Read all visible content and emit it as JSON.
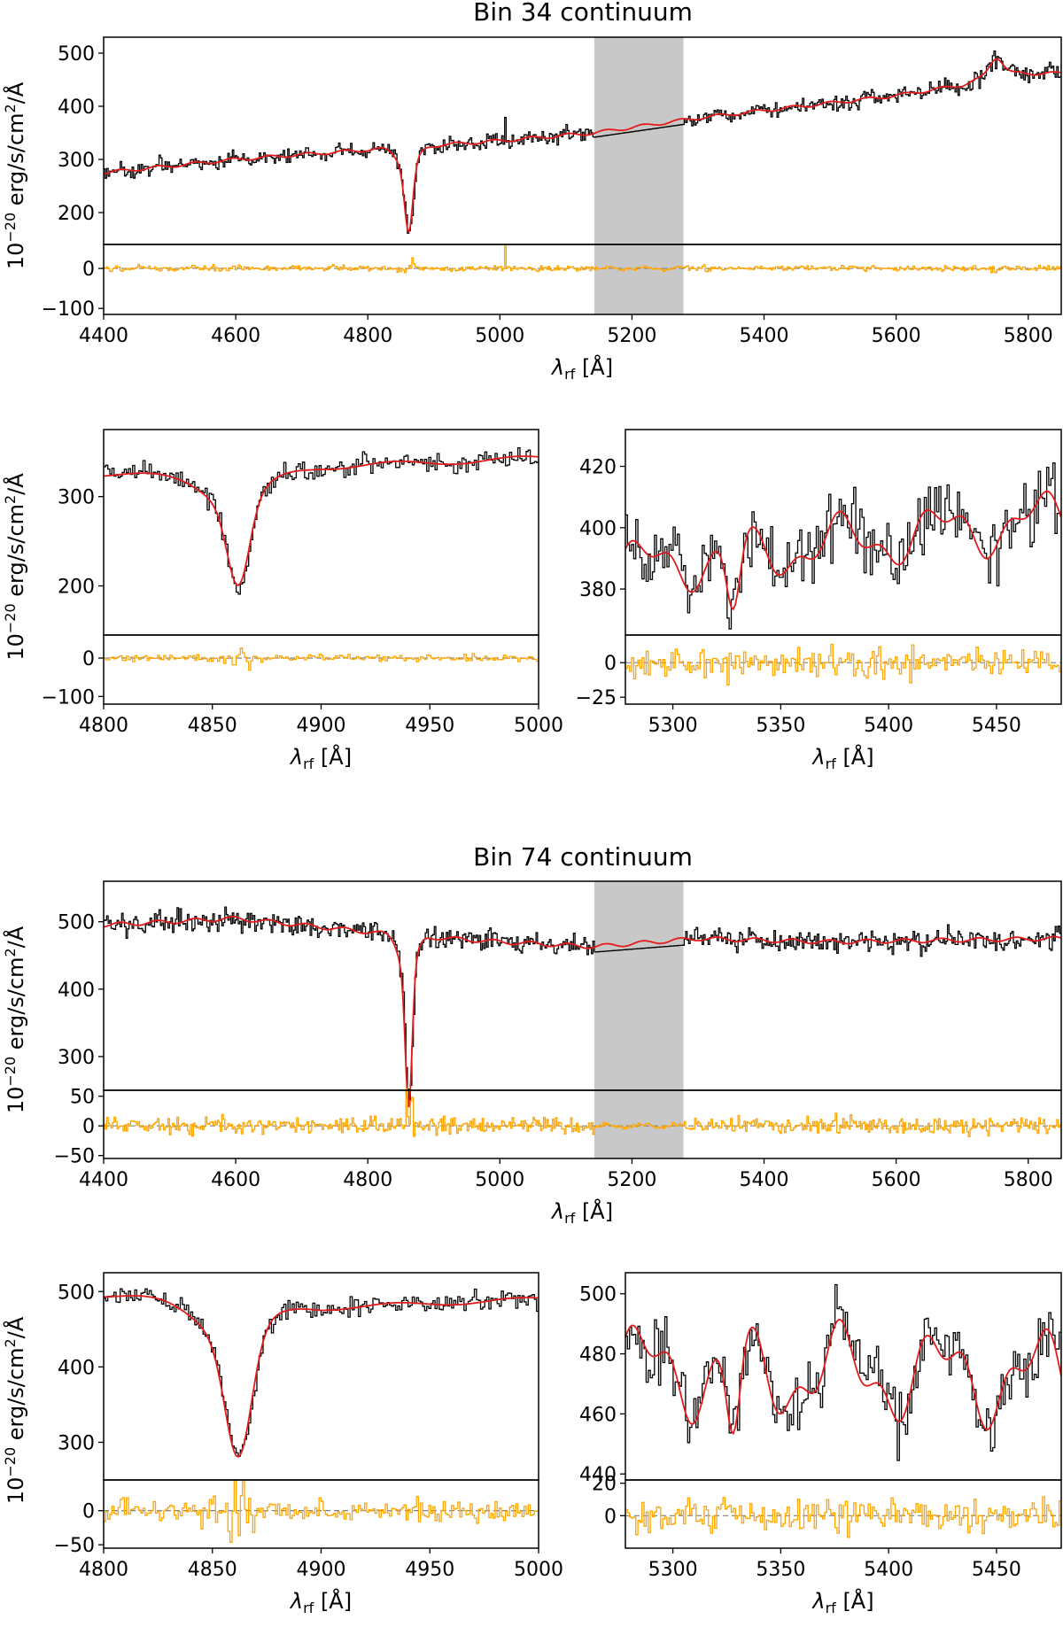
{
  "colors": {
    "data": "#000000",
    "model": "#e41a1c",
    "residual": "#ffa500",
    "zero_line": "#808080",
    "mask": "#c8c8c8"
  },
  "ylabel_base": "10",
  "ylabel_exp": "−20",
  "ylabel_unit": " erg/s/cm",
  "ylabel_sq": "2",
  "ylabel_tail": "/Å",
  "xlabel_sym": "λ",
  "xlabel_sub": "rf",
  "xlabel_unit": " [Å]",
  "chart_data": [
    {
      "id": "bin34",
      "title": "Bin 34 continuum",
      "type": "line",
      "masked_region": [
        5143,
        5278
      ],
      "panels": [
        {
          "name": "full",
          "xlim": [
            4400,
            5850
          ],
          "xticks": [
            4400,
            4600,
            4800,
            5000,
            5200,
            5400,
            5600,
            5800
          ],
          "ylim": [
            140,
            530
          ],
          "yticks": [
            200,
            300,
            400,
            500
          ],
          "res_ylim": [
            -115,
            60
          ],
          "res_yticks": [
            -100,
            0
          ],
          "continuum": [
            [
              4400,
              275
            ],
            [
              4600,
              300
            ],
            [
              4800,
              318
            ],
            [
              5000,
              335
            ],
            [
              5143,
              350
            ],
            [
              5300,
              378
            ],
            [
              5400,
              392
            ],
            [
              5600,
              420
            ],
            [
              5700,
              440
            ],
            [
              5750,
              462
            ],
            [
              5850,
              462
            ]
          ],
          "absorption": [
            {
              "center": 4862,
              "depth": 120,
              "width": 6
            },
            {
              "center": 4860,
              "depth": 40,
              "width": 14
            },
            {
              "center": 5752,
              "depth": -30,
              "width": 10
            }
          ],
          "spikes": [
            {
              "x": 5007,
              "height": 60
            }
          ],
          "noise": 12,
          "res_noise": 6
        },
        {
          "name": "zoom-hbeta",
          "xlim": [
            4800,
            5000
          ],
          "xticks": [
            4800,
            4850,
            4900,
            4950,
            5000
          ],
          "ylim": [
            145,
            375
          ],
          "yticks": [
            200,
            300
          ],
          "res_ylim": [
            -120,
            60
          ],
          "res_yticks": [
            -100,
            0
          ],
          "continuum": [
            [
              4800,
              325
            ],
            [
              4860,
              320
            ],
            [
              4900,
              333
            ],
            [
              5000,
              343
            ]
          ],
          "absorption": [
            {
              "center": 4862,
              "depth": 90,
              "width": 5
            },
            {
              "center": 4860,
              "depth": 30,
              "width": 12
            }
          ],
          "spikes": [],
          "noise": 10,
          "res_noise": 8
        },
        {
          "name": "zoom-red",
          "xlim": [
            5278,
            5480
          ],
          "xticks": [
            5300,
            5350,
            5400,
            5450
          ],
          "ylim": [
            365,
            432
          ],
          "yticks": [
            380,
            400,
            420
          ],
          "res_ylim": [
            -30,
            20
          ],
          "res_yticks": [
            -25,
            0
          ],
          "continuum": [
            [
              5278,
              387
            ],
            [
              5480,
              403
            ]
          ],
          "absorption": [
            {
              "center": 5328,
              "depth": 20,
              "width": 3
            }
          ],
          "spikes": [],
          "noise": 9,
          "res_noise": 9,
          "wiggle": 7
        }
      ]
    },
    {
      "id": "bin74",
      "title": "Bin 74 continuum",
      "type": "line",
      "masked_region": [
        5143,
        5278
      ],
      "panels": [
        {
          "name": "full",
          "xlim": [
            4400,
            5850
          ],
          "xticks": [
            4400,
            4600,
            4800,
            5000,
            5200,
            5400,
            5600,
            5800
          ],
          "ylim": [
            250,
            560
          ],
          "yticks": [
            300,
            400,
            500
          ],
          "res_ylim": [
            -55,
            60
          ],
          "res_yticks": [
            -50,
            0,
            50
          ],
          "continuum": [
            [
              4400,
              495
            ],
            [
              4600,
              505
            ],
            [
              4700,
              495
            ],
            [
              4850,
              480
            ],
            [
              5000,
              470
            ],
            [
              5143,
              463
            ],
            [
              5300,
              475
            ],
            [
              5500,
              470
            ],
            [
              5850,
              475
            ]
          ],
          "absorption": [
            {
              "center": 4862,
              "depth": 200,
              "width": 5
            },
            {
              "center": 4860,
              "depth": 55,
              "width": 12
            }
          ],
          "spikes": [],
          "noise": 14,
          "res_noise": 12
        },
        {
          "name": "zoom-hbeta",
          "xlim": [
            4800,
            5000
          ],
          "xticks": [
            4800,
            4850,
            4900,
            4950,
            5000
          ],
          "ylim": [
            250,
            525
          ],
          "yticks": [
            300,
            400,
            500
          ],
          "res_ylim": [
            -55,
            45
          ],
          "res_yticks": [
            -50,
            0
          ],
          "continuum": [
            [
              4800,
              495
            ],
            [
              4840,
              488
            ],
            [
              4900,
              478
            ],
            [
              5000,
              490
            ]
          ],
          "absorption": [
            {
              "center": 4862,
              "depth": 160,
              "width": 6
            },
            {
              "center": 4858,
              "depth": 45,
              "width": 14
            }
          ],
          "spikes": [],
          "noise": 11,
          "res_noise": 13
        },
        {
          "name": "zoom-red",
          "xlim": [
            5278,
            5480
          ],
          "xticks": [
            5300,
            5350,
            5400,
            5450
          ],
          "ylim": [
            438,
            507
          ],
          "yticks": [
            440,
            460,
            480,
            500
          ],
          "res_ylim": [
            -20,
            22
          ],
          "res_yticks": [
            0,
            20
          ],
          "continuum": [
            [
              5278,
              475
            ],
            [
              5480,
              472
            ]
          ],
          "absorption": [
            {
              "center": 5328,
              "depth": 25,
              "width": 3
            }
          ],
          "spikes": [],
          "noise": 9,
          "res_noise": 9,
          "wiggle": 12
        }
      ]
    }
  ]
}
